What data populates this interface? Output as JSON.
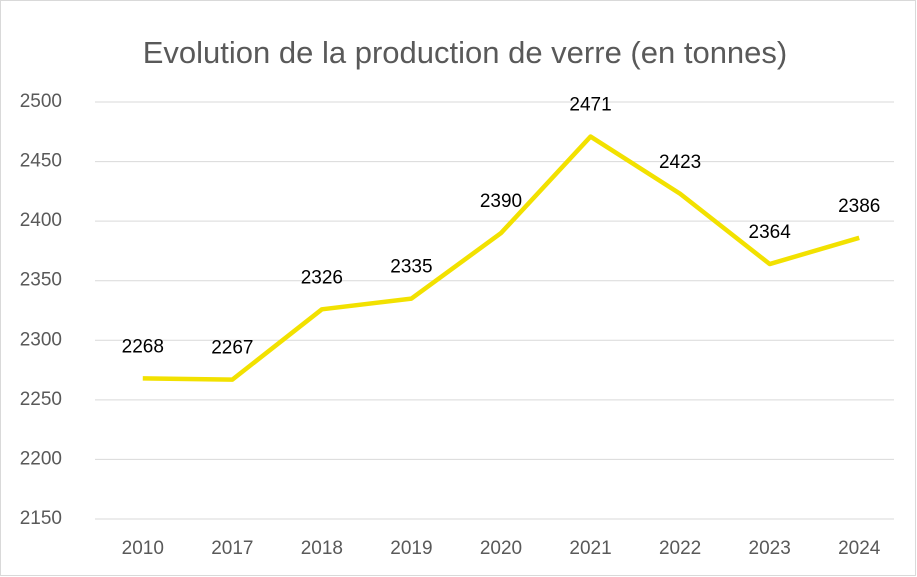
{
  "chart_data": {
    "type": "line",
    "title": "Evolution de la production de verre (en tonnes)",
    "categories": [
      "2010",
      "2017",
      "2018",
      "2019",
      "2020",
      "2021",
      "2022",
      "2023",
      "2024"
    ],
    "series": [
      {
        "name": "Production",
        "color": "#f2e100",
        "values": [
          2268,
          2267,
          2326,
          2335,
          2390,
          2471,
          2423,
          2364,
          2386
        ]
      }
    ],
    "ylim": [
      2150,
      2500
    ],
    "yticks": [
      2150,
      2200,
      2250,
      2300,
      2350,
      2400,
      2450,
      2500
    ],
    "grid": true,
    "data_labels": true
  }
}
